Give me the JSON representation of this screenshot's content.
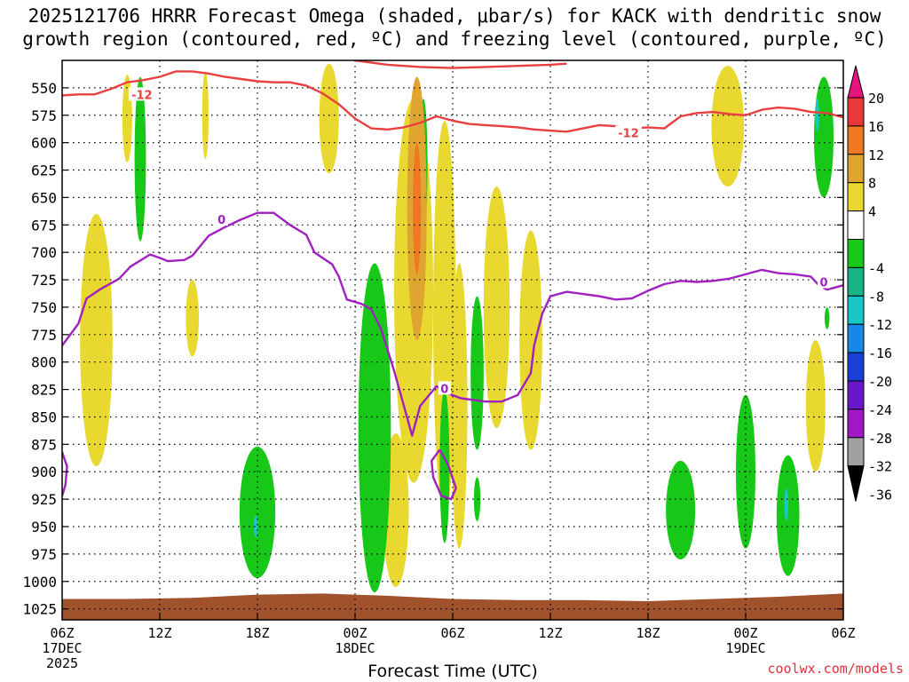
{
  "title": {
    "line1": "2025121706 HRRR Forecast Omega (shaded, μbar/s) for KACK with dendritic snow",
    "line2": "growth region (contoured, red, ºC) and freezing level (contoured, purple, ºC)"
  },
  "credit": "coolwx.com/models",
  "chart_data": {
    "type": "heatmap",
    "title": "2025121706 HRRR Forecast Omega (shaded, μbar/s) for KACK with dendritic snow growth region (contoured, red, ºC) and freezing level (contoured, purple, ºC)",
    "xlabel": "Forecast Time (UTC)",
    "ylabel": "",
    "x_unit": "hours after 2025-12-17 06Z",
    "xlim": [
      0,
      48
    ],
    "y_unit": "hPa",
    "ylim": [
      525,
      1035
    ],
    "y_reversed": true,
    "grid": true,
    "x_ticks": [
      {
        "h": 0,
        "label": "06Z",
        "date": "17DEC",
        "year": "2025"
      },
      {
        "h": 6,
        "label": "12Z"
      },
      {
        "h": 12,
        "label": "18Z"
      },
      {
        "h": 18,
        "label": "00Z",
        "date": "18DEC"
      },
      {
        "h": 24,
        "label": "06Z"
      },
      {
        "h": 30,
        "label": "12Z"
      },
      {
        "h": 36,
        "label": "18Z"
      },
      {
        "h": 42,
        "label": "00Z",
        "date": "19DEC"
      },
      {
        "h": 48,
        "label": "06Z"
      }
    ],
    "y_ticks": [
      550,
      575,
      600,
      625,
      650,
      675,
      700,
      725,
      750,
      775,
      800,
      825,
      850,
      875,
      900,
      925,
      950,
      975,
      1000,
      1025
    ],
    "colorbar": {
      "labels": [
        "20",
        "16",
        "12",
        "8",
        "4",
        "-4",
        "-8",
        "-12",
        "-16",
        "-20",
        "-24",
        "-28",
        "-32",
        "-36"
      ],
      "bins": [
        {
          "lo": 20,
          "hi": 24,
          "color": "#e8137d"
        },
        {
          "lo": 16,
          "hi": 20,
          "color": "#e83838"
        },
        {
          "lo": 12,
          "hi": 16,
          "color": "#f07822"
        },
        {
          "lo": 8,
          "hi": 12,
          "color": "#e0a430"
        },
        {
          "lo": 4,
          "hi": 8,
          "color": "#e8d830"
        },
        {
          "lo": -4,
          "hi": 4,
          "color": "#ffffff"
        },
        {
          "lo": -8,
          "hi": -4,
          "color": "#18c818"
        },
        {
          "lo": -12,
          "hi": -8,
          "color": "#18b488"
        },
        {
          "lo": -16,
          "hi": -12,
          "color": "#18c8c8"
        },
        {
          "lo": -20,
          "hi": -16,
          "color": "#1888e8"
        },
        {
          "lo": -24,
          "hi": -20,
          "color": "#1840d8"
        },
        {
          "lo": -28,
          "hi": -24,
          "color": "#6818c8"
        },
        {
          "lo": -32,
          "hi": -28,
          "color": "#a018c8"
        },
        {
          "lo": -36,
          "hi": -32,
          "color": "#a0a0a0"
        },
        {
          "lo": -40,
          "hi": -36,
          "color": "#000000"
        }
      ]
    },
    "series": [
      {
        "name": "-12",
        "kind": "dendritic snow growth contour",
        "color": "#e84040",
        "label_positions": [
          [
            4.9,
            556
          ],
          [
            34.8,
            591
          ]
        ],
        "points": [
          [
            0,
            557
          ],
          [
            1,
            556
          ],
          [
            2,
            556
          ],
          [
            3,
            551
          ],
          [
            4,
            545
          ],
          [
            5,
            543
          ],
          [
            6,
            540
          ],
          [
            7,
            535
          ],
          [
            8,
            535
          ],
          [
            9,
            537
          ],
          [
            10,
            540
          ],
          [
            11,
            542
          ],
          [
            12,
            544
          ],
          [
            13,
            545
          ],
          [
            14,
            545
          ],
          [
            15,
            548
          ],
          [
            16,
            555
          ],
          [
            17,
            565
          ],
          [
            18,
            578
          ],
          [
            19,
            587
          ],
          [
            20,
            588
          ],
          [
            21,
            586
          ],
          [
            22,
            582
          ],
          [
            23,
            576
          ],
          [
            24,
            580
          ],
          [
            25,
            583
          ],
          [
            26,
            584
          ],
          [
            27,
            585
          ],
          [
            28,
            586
          ],
          [
            29,
            588
          ],
          [
            30,
            589
          ],
          [
            31,
            590
          ],
          [
            32,
            587
          ],
          [
            33,
            584
          ],
          [
            34,
            585
          ],
          [
            35,
            587
          ],
          [
            36,
            586
          ],
          [
            37,
            587
          ],
          [
            38,
            576
          ],
          [
            39,
            573
          ],
          [
            40,
            572
          ],
          [
            41,
            574
          ],
          [
            42,
            575
          ],
          [
            43,
            570
          ],
          [
            44,
            568
          ],
          [
            45,
            569
          ],
          [
            46,
            572
          ],
          [
            47,
            573
          ],
          [
            48,
            577
          ]
        ]
      },
      {
        "name": "-12",
        "kind": "dendritic snow growth contour (upper)",
        "color": "#e84040",
        "points": [
          [
            18,
            525
          ],
          [
            20,
            529
          ],
          [
            22,
            531
          ],
          [
            24,
            532
          ],
          [
            26,
            531
          ],
          [
            28,
            530
          ],
          [
            30,
            529
          ],
          [
            31,
            528
          ]
        ]
      },
      {
        "name": "0",
        "kind": "freezing level contour",
        "color": "#a020c0",
        "label_positions": [
          [
            9.8,
            670
          ],
          [
            46.8,
            727
          ],
          [
            23.5,
            824
          ]
        ],
        "points": [
          [
            0,
            785
          ],
          [
            1,
            765
          ],
          [
            1.5,
            742
          ],
          [
            2.3,
            734
          ],
          [
            3.5,
            724
          ],
          [
            4.2,
            713
          ],
          [
            5.4,
            702
          ],
          [
            6,
            705
          ],
          [
            6.5,
            708
          ],
          [
            7.5,
            707
          ],
          [
            8,
            703
          ],
          [
            9,
            685
          ],
          [
            10,
            677
          ],
          [
            11,
            670
          ],
          [
            12,
            664
          ],
          [
            13,
            664
          ],
          [
            14,
            675
          ],
          [
            15,
            684
          ],
          [
            15.5,
            700
          ],
          [
            16.6,
            711
          ],
          [
            17,
            722
          ],
          [
            17.5,
            743
          ],
          [
            18.4,
            747
          ],
          [
            19,
            752
          ],
          [
            19.6,
            770
          ],
          [
            20.4,
            808
          ],
          [
            21,
            840
          ],
          [
            21.5,
            867
          ],
          [
            22,
            840
          ],
          [
            23,
            822
          ],
          [
            23.6,
            828
          ],
          [
            24.5,
            833
          ],
          [
            26,
            836
          ],
          [
            27,
            836
          ],
          [
            28,
            830
          ],
          [
            28.8,
            810
          ],
          [
            29,
            785
          ],
          [
            29.5,
            756
          ],
          [
            30,
            740
          ],
          [
            31,
            736
          ],
          [
            32,
            738
          ],
          [
            33,
            740
          ],
          [
            34,
            743
          ],
          [
            35,
            742
          ],
          [
            36,
            735
          ],
          [
            37,
            729
          ],
          [
            38,
            726
          ],
          [
            39,
            727
          ],
          [
            40,
            726
          ],
          [
            41,
            724
          ],
          [
            42,
            720
          ],
          [
            43,
            716
          ],
          [
            44,
            719
          ],
          [
            45,
            720
          ],
          [
            46,
            722
          ],
          [
            46.5,
            730
          ],
          [
            47,
            734
          ],
          [
            48,
            730
          ]
        ]
      },
      {
        "name": "0",
        "kind": "freezing level contour (left edge)",
        "color": "#a020c0",
        "points": [
          [
            0,
            882
          ],
          [
            0.3,
            895
          ],
          [
            0.2,
            912
          ],
          [
            0,
            922
          ]
        ]
      },
      {
        "name": "0",
        "kind": "freezing level contour (closed)",
        "color": "#a020c0",
        "points": [
          [
            23.2,
            880
          ],
          [
            23.7,
            893
          ],
          [
            24.2,
            915
          ],
          [
            23.9,
            925
          ],
          [
            23.3,
            922
          ],
          [
            22.8,
            905
          ],
          [
            22.7,
            890
          ],
          [
            23.2,
            880
          ]
        ]
      }
    ],
    "omega_regions": [
      {
        "level": 4,
        "h": 2.1,
        "p": 780,
        "rh": 1.0,
        "rp": 115
      },
      {
        "level": 4,
        "h": 4.0,
        "p": 578,
        "rh": 0.3,
        "rp": 40
      },
      {
        "level": 4,
        "h": 8.8,
        "p": 575,
        "rh": 0.2,
        "rp": 40
      },
      {
        "level": 4,
        "h": 8.0,
        "p": 760,
        "rh": 0.4,
        "rp": 35
      },
      {
        "level": 4,
        "h": 16.4,
        "p": 578,
        "rh": 0.6,
        "rp": 50
      },
      {
        "level": 4,
        "h": 21.6,
        "p": 735,
        "rh": 1.2,
        "rp": 175
      },
      {
        "level": 8,
        "h": 21.8,
        "p": 660,
        "rh": 0.6,
        "rp": 120
      },
      {
        "level": 12,
        "h": 21.8,
        "p": 660,
        "rh": 0.25,
        "rp": 60
      },
      {
        "level": 4,
        "h": 23.5,
        "p": 760,
        "rh": 0.7,
        "rp": 180
      },
      {
        "level": 4,
        "h": 20.5,
        "p": 935,
        "rh": 0.8,
        "rp": 70
      },
      {
        "level": 4,
        "h": 24.4,
        "p": 840,
        "rh": 0.5,
        "rp": 130
      },
      {
        "level": 4,
        "h": 26.7,
        "p": 750,
        "rh": 0.8,
        "rp": 110
      },
      {
        "level": 4,
        "h": 28.8,
        "p": 780,
        "rh": 0.7,
        "rp": 100
      },
      {
        "level": 4,
        "h": 40.9,
        "p": 585,
        "rh": 1.0,
        "rp": 55
      },
      {
        "level": 4,
        "h": 46.3,
        "p": 840,
        "rh": 0.6,
        "rp": 60
      },
      {
        "level": -4,
        "h": 4.8,
        "p": 615,
        "rh": 0.35,
        "rp": 75
      },
      {
        "level": -4,
        "h": 12.0,
        "p": 937,
        "rh": 1.1,
        "rp": 60
      },
      {
        "level": -4,
        "h": 19.2,
        "p": 860,
        "rh": 1.0,
        "rp": 150
      },
      {
        "level": -4,
        "h": 22.2,
        "p": 620,
        "rh": 0.25,
        "rp": 60
      },
      {
        "level": -4,
        "h": 23.5,
        "p": 895,
        "rh": 0.3,
        "rp": 70
      },
      {
        "level": -4,
        "h": 25.5,
        "p": 810,
        "rh": 0.4,
        "rp": 70
      },
      {
        "level": -4,
        "h": 25.5,
        "p": 925,
        "rh": 0.2,
        "rp": 20
      },
      {
        "level": -4,
        "h": 38.0,
        "p": 935,
        "rh": 0.9,
        "rp": 45
      },
      {
        "level": -4,
        "h": 42.0,
        "p": 900,
        "rh": 0.6,
        "rp": 70
      },
      {
        "level": -4,
        "h": 44.6,
        "p": 940,
        "rh": 0.7,
        "rp": 55
      },
      {
        "level": -4,
        "h": 46.8,
        "p": 595,
        "rh": 0.6,
        "rp": 55
      },
      {
        "level": -4,
        "h": 47.0,
        "p": 760,
        "rh": 0.15,
        "rp": 10
      },
      {
        "level": -12,
        "h": 11.9,
        "p": 950,
        "rh": 0.12,
        "rp": 10
      },
      {
        "level": -12,
        "h": 44.5,
        "p": 930,
        "rh": 0.12,
        "rp": 15
      },
      {
        "level": -12,
        "h": 46.4,
        "p": 575,
        "rh": 0.12,
        "rp": 15
      }
    ],
    "terrain": {
      "color": "#a0522d",
      "points": [
        [
          0,
          1016
        ],
        [
          4,
          1016
        ],
        [
          8,
          1015
        ],
        [
          12,
          1012
        ],
        [
          16,
          1011
        ],
        [
          20,
          1013
        ],
        [
          24,
          1016
        ],
        [
          28,
          1017
        ],
        [
          32,
          1017
        ],
        [
          36,
          1018
        ],
        [
          40,
          1016
        ],
        [
          44,
          1014
        ],
        [
          48,
          1011
        ]
      ]
    }
  }
}
